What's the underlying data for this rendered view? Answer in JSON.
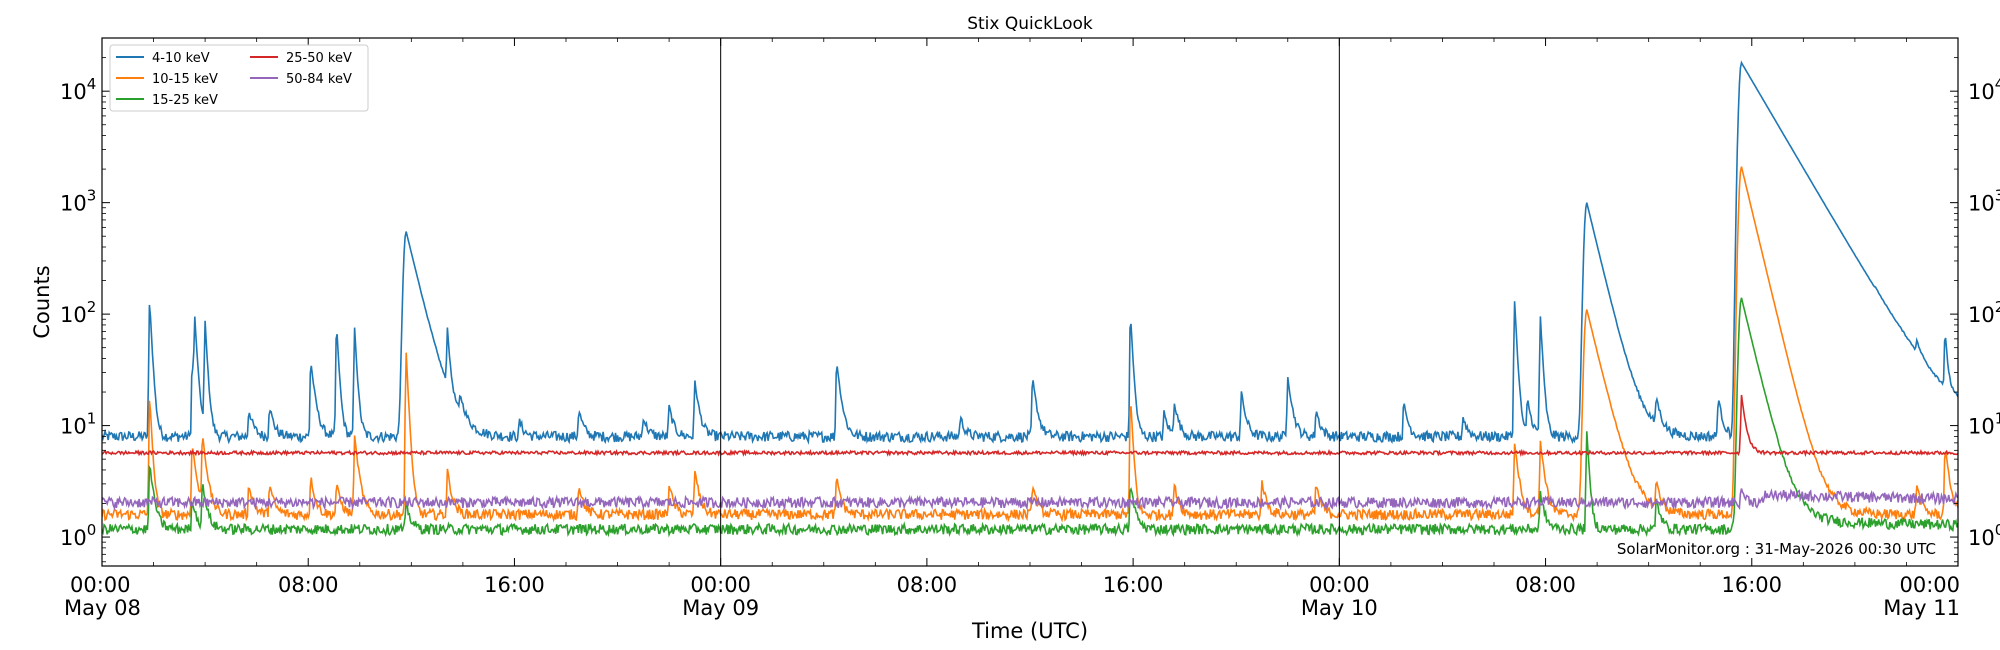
{
  "chart_data": {
    "type": "line",
    "title": "Stix QuickLook",
    "xlabel": "Time (UTC)",
    "ylabel": "Counts",
    "yscale": "log",
    "ylim": [
      0.55,
      30000
    ],
    "xlim_hours": [
      0,
      72
    ],
    "x_ticks": [
      {
        "h": 0,
        "line1": "00:00",
        "line2": "May 08"
      },
      {
        "h": 8,
        "line1": "08:00",
        "line2": ""
      },
      {
        "h": 16,
        "line1": "16:00",
        "line2": ""
      },
      {
        "h": 24,
        "line1": "00:00",
        "line2": "May 09"
      },
      {
        "h": 32,
        "line1": "08:00",
        "line2": ""
      },
      {
        "h": 40,
        "line1": "16:00",
        "line2": ""
      },
      {
        "h": 48,
        "line1": "00:00",
        "line2": "May 10"
      },
      {
        "h": 56,
        "line1": "08:00",
        "line2": ""
      },
      {
        "h": 64,
        "line1": "16:00",
        "line2": ""
      },
      {
        "h": 72,
        "line1": "00:00",
        "line2": "May 11"
      }
    ],
    "y_ticks": [
      {
        "v": 1,
        "label": "10",
        "exp": "0"
      },
      {
        "v": 10,
        "label": "10",
        "exp": "1"
      },
      {
        "v": 100,
        "label": "10",
        "exp": "2"
      },
      {
        "v": 1000,
        "label": "10",
        "exp": "3"
      },
      {
        "v": 10000,
        "label": "10",
        "exp": "4"
      }
    ],
    "day_boundaries_hours": [
      24,
      48
    ],
    "legend_position": "upper-left",
    "grid": false,
    "series": [
      {
        "name": "4-10 keV",
        "color": "#1f77b4",
        "baseline": 8,
        "peaks": [
          [
            1.85,
            130
          ],
          [
            3.5,
            35
          ],
          [
            3.6,
            80
          ],
          [
            4.0,
            85
          ],
          [
            5.7,
            14
          ],
          [
            6.5,
            15
          ],
          [
            8.1,
            38
          ],
          [
            9.1,
            80
          ],
          [
            9.8,
            75
          ],
          [
            11.8,
            550
          ],
          [
            13.4,
            60
          ],
          [
            13.9,
            14
          ],
          [
            16.2,
            11
          ],
          [
            18.5,
            14
          ],
          [
            21.0,
            12
          ],
          [
            22.0,
            15
          ],
          [
            23.0,
            25
          ],
          [
            28.5,
            38
          ],
          [
            33.3,
            12
          ],
          [
            36.1,
            27
          ],
          [
            39.9,
            100
          ],
          [
            41.2,
            13
          ],
          [
            41.6,
            16
          ],
          [
            44.2,
            20
          ],
          [
            46.0,
            28
          ],
          [
            47.1,
            14
          ],
          [
            50.5,
            16
          ],
          [
            52.8,
            12
          ],
          [
            54.8,
            130
          ],
          [
            55.3,
            17
          ],
          [
            55.8,
            95
          ],
          [
            57.6,
            1000
          ],
          [
            60.3,
            16
          ],
          [
            62.7,
            18
          ],
          [
            63.6,
            18000
          ],
          [
            68.8,
            15
          ],
          [
            70.4,
            20
          ],
          [
            71.5,
            55
          ]
        ]
      },
      {
        "name": "10-15 keV",
        "color": "#ff7f0e",
        "baseline": 1.6,
        "peaks": [
          [
            1.85,
            18
          ],
          [
            3.5,
            7
          ],
          [
            3.9,
            8
          ],
          [
            5.7,
            3
          ],
          [
            6.5,
            3
          ],
          [
            8.1,
            3.5
          ],
          [
            9.1,
            3
          ],
          [
            9.8,
            8
          ],
          [
            11.8,
            45
          ],
          [
            13.4,
            4
          ],
          [
            18.5,
            3
          ],
          [
            22.0,
            3
          ],
          [
            23.0,
            4
          ],
          [
            28.5,
            3.5
          ],
          [
            36.1,
            3
          ],
          [
            39.9,
            18
          ],
          [
            41.6,
            3
          ],
          [
            45.0,
            3.2
          ],
          [
            47.1,
            3
          ],
          [
            54.8,
            7
          ],
          [
            55.8,
            7.3
          ],
          [
            57.6,
            110
          ],
          [
            60.3,
            3
          ],
          [
            63.6,
            2100
          ],
          [
            70.4,
            3
          ],
          [
            71.5,
            6.5
          ]
        ]
      },
      {
        "name": "15-25 keV",
        "color": "#2ca02c",
        "baseline": 1.18,
        "peaks": [
          [
            1.85,
            4.5
          ],
          [
            3.5,
            2.2
          ],
          [
            3.9,
            3
          ],
          [
            11.8,
            2
          ],
          [
            39.9,
            3
          ],
          [
            55.8,
            2.5
          ],
          [
            57.6,
            9
          ],
          [
            60.3,
            2.2
          ],
          [
            63.6,
            140
          ]
        ]
      },
      {
        "name": "25-50 keV",
        "color": "#d62728",
        "baseline": 5.7,
        "peaks": [
          [
            63.6,
            19
          ]
        ]
      },
      {
        "name": "50-84 keV",
        "color": "#9467bd",
        "baseline": 2.05,
        "peaks": [
          [
            63.6,
            2.7
          ]
        ]
      }
    ]
  },
  "watermark": "SolarMonitor.org : 31-May-2026 00:30 UTC"
}
